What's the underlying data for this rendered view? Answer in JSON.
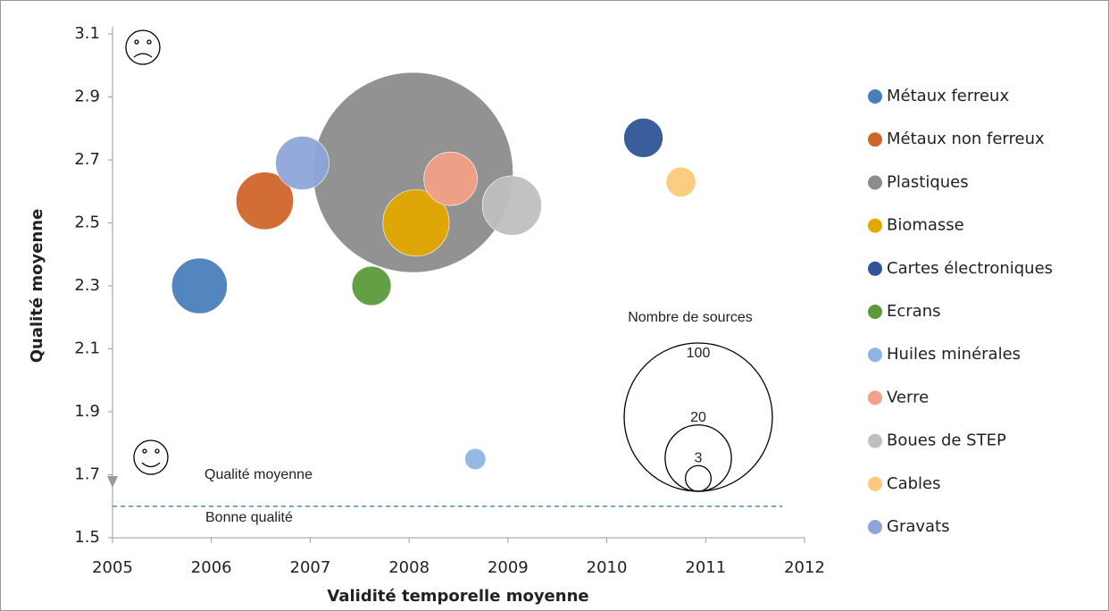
{
  "chart_data": {
    "type": "bubble",
    "x_label": "Validité temporelle moyenne",
    "y_label": "Qualité moyenne",
    "xlim": [
      2005,
      2012
    ],
    "xticks": [
      2005,
      2006,
      2007,
      2008,
      2009,
      2010,
      2011,
      2012
    ],
    "ylim": [
      1.5,
      3.1
    ],
    "yticks": [
      1.5,
      1.7,
      1.9,
      2.1,
      2.3,
      2.5,
      2.7,
      2.9,
      3.1
    ],
    "series": [
      {
        "name": "Métaux ferreux",
        "color": "#4a7ebb",
        "x": [
          2005.88
        ],
        "values": [
          2.3
        ],
        "sizes": [
          14
        ]
      },
      {
        "name": "Métaux non ferreux",
        "color": "#d0652b",
        "x": [
          2006.54
        ],
        "values": [
          2.57
        ],
        "sizes": [
          15
        ]
      },
      {
        "name": "Plastiques",
        "color": "#8c8c8c",
        "x": [
          2008.04
        ],
        "values": [
          2.66
        ],
        "sizes": [
          182
        ]
      },
      {
        "name": "Biomasse",
        "color": "#e3a800",
        "x": [
          2008.07
        ],
        "values": [
          2.5
        ],
        "sizes": [
          20
        ]
      },
      {
        "name": "Cartes électroniques",
        "color": "#2f5597",
        "x": [
          2010.37
        ],
        "values": [
          2.77
        ],
        "sizes": [
          7
        ]
      },
      {
        "name": "Ecrans",
        "color": "#5b9a3b",
        "x": [
          2007.62
        ],
        "values": [
          2.3
        ],
        "sizes": [
          7
        ]
      },
      {
        "name": "Huiles minérales",
        "color": "#8fb4e3",
        "x": [
          2008.67
        ],
        "values": [
          1.75
        ],
        "sizes": [
          2
        ]
      },
      {
        "name": "Verre",
        "color": "#f2a088",
        "x": [
          2008.42
        ],
        "values": [
          2.64
        ],
        "sizes": [
          13
        ]
      },
      {
        "name": "Boues de STEP",
        "color": "#bfbfbf",
        "x": [
          2009.04
        ],
        "values": [
          2.555
        ],
        "sizes": [
          16
        ]
      },
      {
        "name": "Cables",
        "color": "#fcc97a",
        "x": [
          2010.75
        ],
        "values": [
          2.63
        ],
        "sizes": [
          4
        ]
      },
      {
        "name": "Gravats",
        "color": "#8ea5d8",
        "x": [
          2006.92
        ],
        "values": [
          2.69
        ],
        "sizes": [
          13
        ]
      }
    ],
    "size_legend": {
      "title": "Nombre de sources",
      "values": [
        100,
        20,
        3
      ]
    },
    "threshold": 1.6,
    "annotations": [
      "Qualité moyenne",
      "Bonne qualité"
    ],
    "legend_position": "right"
  }
}
